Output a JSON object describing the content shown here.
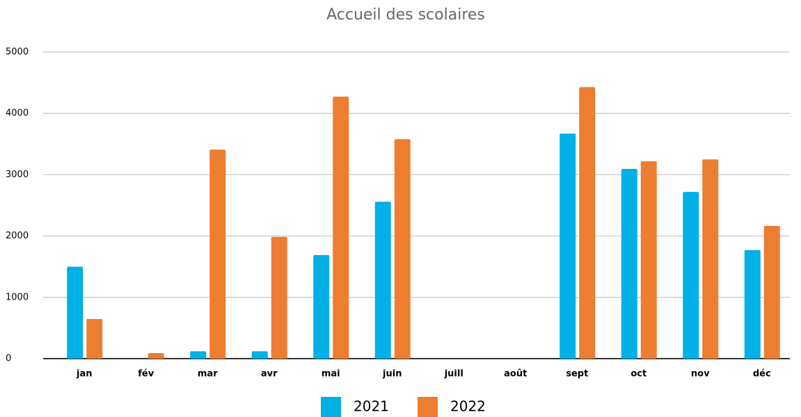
{
  "chart_data": {
    "type": "bar",
    "title": "Accueil des scolaires",
    "categories": [
      "jan",
      "fév",
      "mar",
      "avr",
      "mai",
      "juin",
      "juill",
      "août",
      "sept",
      "oct",
      "nov",
      "déc"
    ],
    "series": [
      {
        "name": "2021",
        "color": "#00b0e6",
        "values": [
          1500,
          0,
          120,
          120,
          1690,
          2560,
          0,
          0,
          3670,
          3095,
          2720,
          1770
        ]
      },
      {
        "name": "2022",
        "color": "#ed7d31",
        "values": [
          646,
          90,
          3410,
          1985,
          4275,
          3580,
          0,
          0,
          4430,
          3220,
          3250,
          2165
        ]
      }
    ],
    "ylim": [
      0,
      5000
    ],
    "yticks": [
      0,
      1000,
      2000,
      3000,
      4000,
      5000
    ],
    "grid": true,
    "legend": "bottom"
  }
}
